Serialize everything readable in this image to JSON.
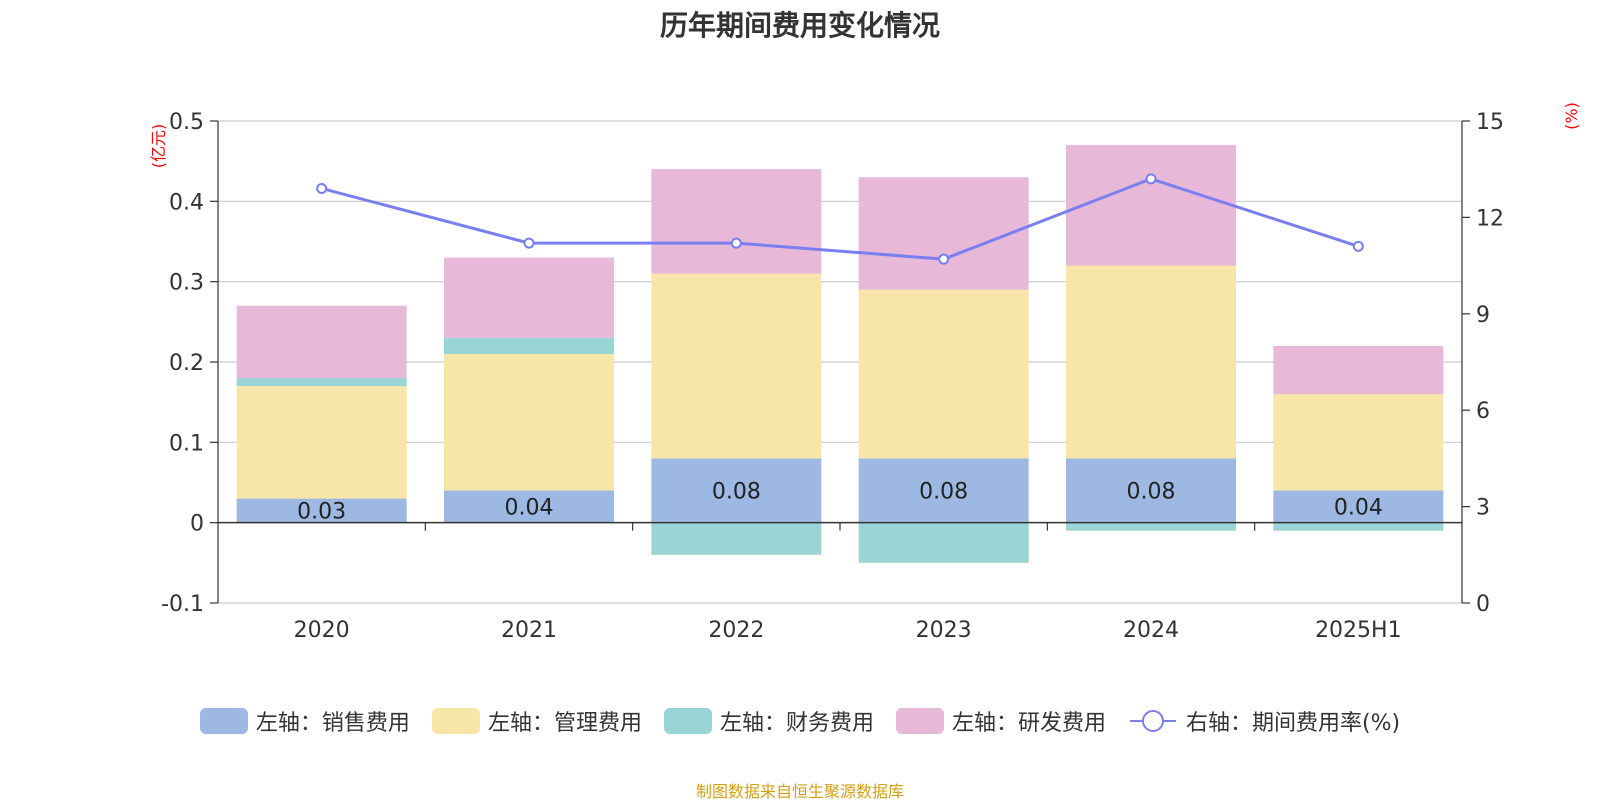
{
  "chart_data": {
    "type": "bar",
    "title": "历年期间费用变化情况",
    "categories": [
      "2020",
      "2021",
      "2022",
      "2023",
      "2024",
      "2025H1"
    ],
    "series": [
      {
        "name": "左轴：销售费用",
        "values": [
          0.03,
          0.04,
          0.08,
          0.08,
          0.08,
          0.04
        ],
        "color": "#9db8e2",
        "axis": "left",
        "labels": [
          "0.03",
          "0.04",
          "0.08",
          "0.08",
          "0.08",
          "0.04"
        ]
      },
      {
        "name": "左轴：管理费用",
        "values": [
          0.14,
          0.17,
          0.23,
          0.21,
          0.24,
          0.12
        ],
        "color": "#f8e6a8",
        "axis": "left"
      },
      {
        "name": "左轴：财务费用",
        "values": [
          0.01,
          0.02,
          -0.04,
          -0.05,
          -0.01,
          -0.01
        ],
        "color": "#98d5d4",
        "axis": "left"
      },
      {
        "name": "左轴：研发费用",
        "values": [
          0.09,
          0.1,
          0.13,
          0.14,
          0.15,
          0.06
        ],
        "color": "#e8b8d8",
        "axis": "left"
      },
      {
        "name": "右轴：期间费用率(%)",
        "type": "line",
        "values": [
          12.9,
          11.2,
          11.2,
          10.7,
          13.2,
          11.1
        ],
        "color": "#7a7ff0",
        "axis": "right"
      }
    ],
    "y_left": {
      "unit": "(亿元)",
      "ylim": [
        -0.1,
        0.5
      ],
      "ticks": [
        "-0.1",
        "0",
        "0.1",
        "0.2",
        "0.3",
        "0.4",
        "0.5"
      ],
      "tick_values": [
        -0.1,
        0,
        0.1,
        0.2,
        0.3,
        0.4,
        0.5
      ]
    },
    "y_right": {
      "unit": "(%)",
      "ylim": [
        0,
        15
      ],
      "ticks": [
        "0",
        "3",
        "6",
        "9",
        "12",
        "15"
      ],
      "tick_values": [
        0,
        3,
        6,
        9,
        12,
        15
      ]
    },
    "grid": true,
    "legend": "bottom"
  },
  "source_note": "制图数据来自恒生聚源数据库"
}
